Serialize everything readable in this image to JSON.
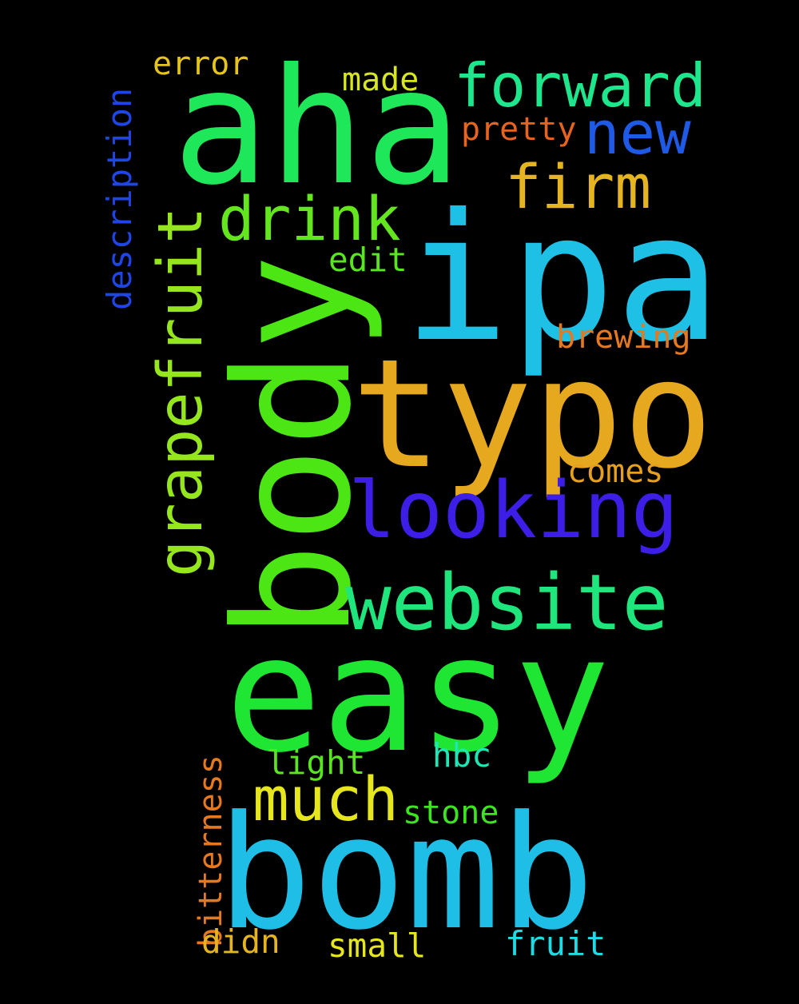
{
  "background": "#000000",
  "words": {
    "aha": {
      "text": "aha",
      "color": "#1ee85a"
    },
    "ipa": {
      "text": "ipa",
      "color": "#1ec0e6"
    },
    "body": {
      "text": "body",
      "color": "#4ce614"
    },
    "typo": {
      "text": "typo",
      "color": "#e6a81e"
    },
    "easy": {
      "text": "easy",
      "color": "#1ee632"
    },
    "bomb": {
      "text": "bomb",
      "color": "#1ebee6"
    },
    "looking": {
      "text": "looking",
      "color": "#3c1ee6"
    },
    "website": {
      "text": "website",
      "color": "#1ee67c"
    },
    "forward": {
      "text": "forward",
      "color": "#1ee68c"
    },
    "grapefruit": {
      "text": "grapefruit",
      "color": "#96e61e"
    },
    "drink": {
      "text": "drink",
      "color": "#64e61e"
    },
    "firm": {
      "text": "firm",
      "color": "#e6b41e"
    },
    "new": {
      "text": "new",
      "color": "#1e5ae6"
    },
    "much": {
      "text": "much",
      "color": "#e6e61e"
    },
    "error": {
      "text": "error",
      "color": "#e6c41e"
    },
    "made": {
      "text": "made",
      "color": "#d8e61e"
    },
    "pretty": {
      "text": "pretty",
      "color": "#e6641e"
    },
    "description": {
      "text": "description",
      "color": "#1e46e6"
    },
    "edit": {
      "text": "edit",
      "color": "#5ae61e"
    },
    "brewing": {
      "text": "brewing",
      "color": "#e6781e"
    },
    "comes": {
      "text": "comes",
      "color": "#e6a01e"
    },
    "bitterness": {
      "text": "bitterness",
      "color": "#e6781e"
    },
    "light": {
      "text": "light",
      "color": "#5ae61e"
    },
    "hbc": {
      "text": "hbc",
      "color": "#1ee6b4"
    },
    "stone": {
      "text": "stone",
      "color": "#3ce61e"
    },
    "didn": {
      "text": "didn",
      "color": "#e6b41e"
    },
    "small": {
      "text": "small",
      "color": "#e6e61e"
    },
    "fruit": {
      "text": "fruit",
      "color": "#1edce6"
    }
  }
}
